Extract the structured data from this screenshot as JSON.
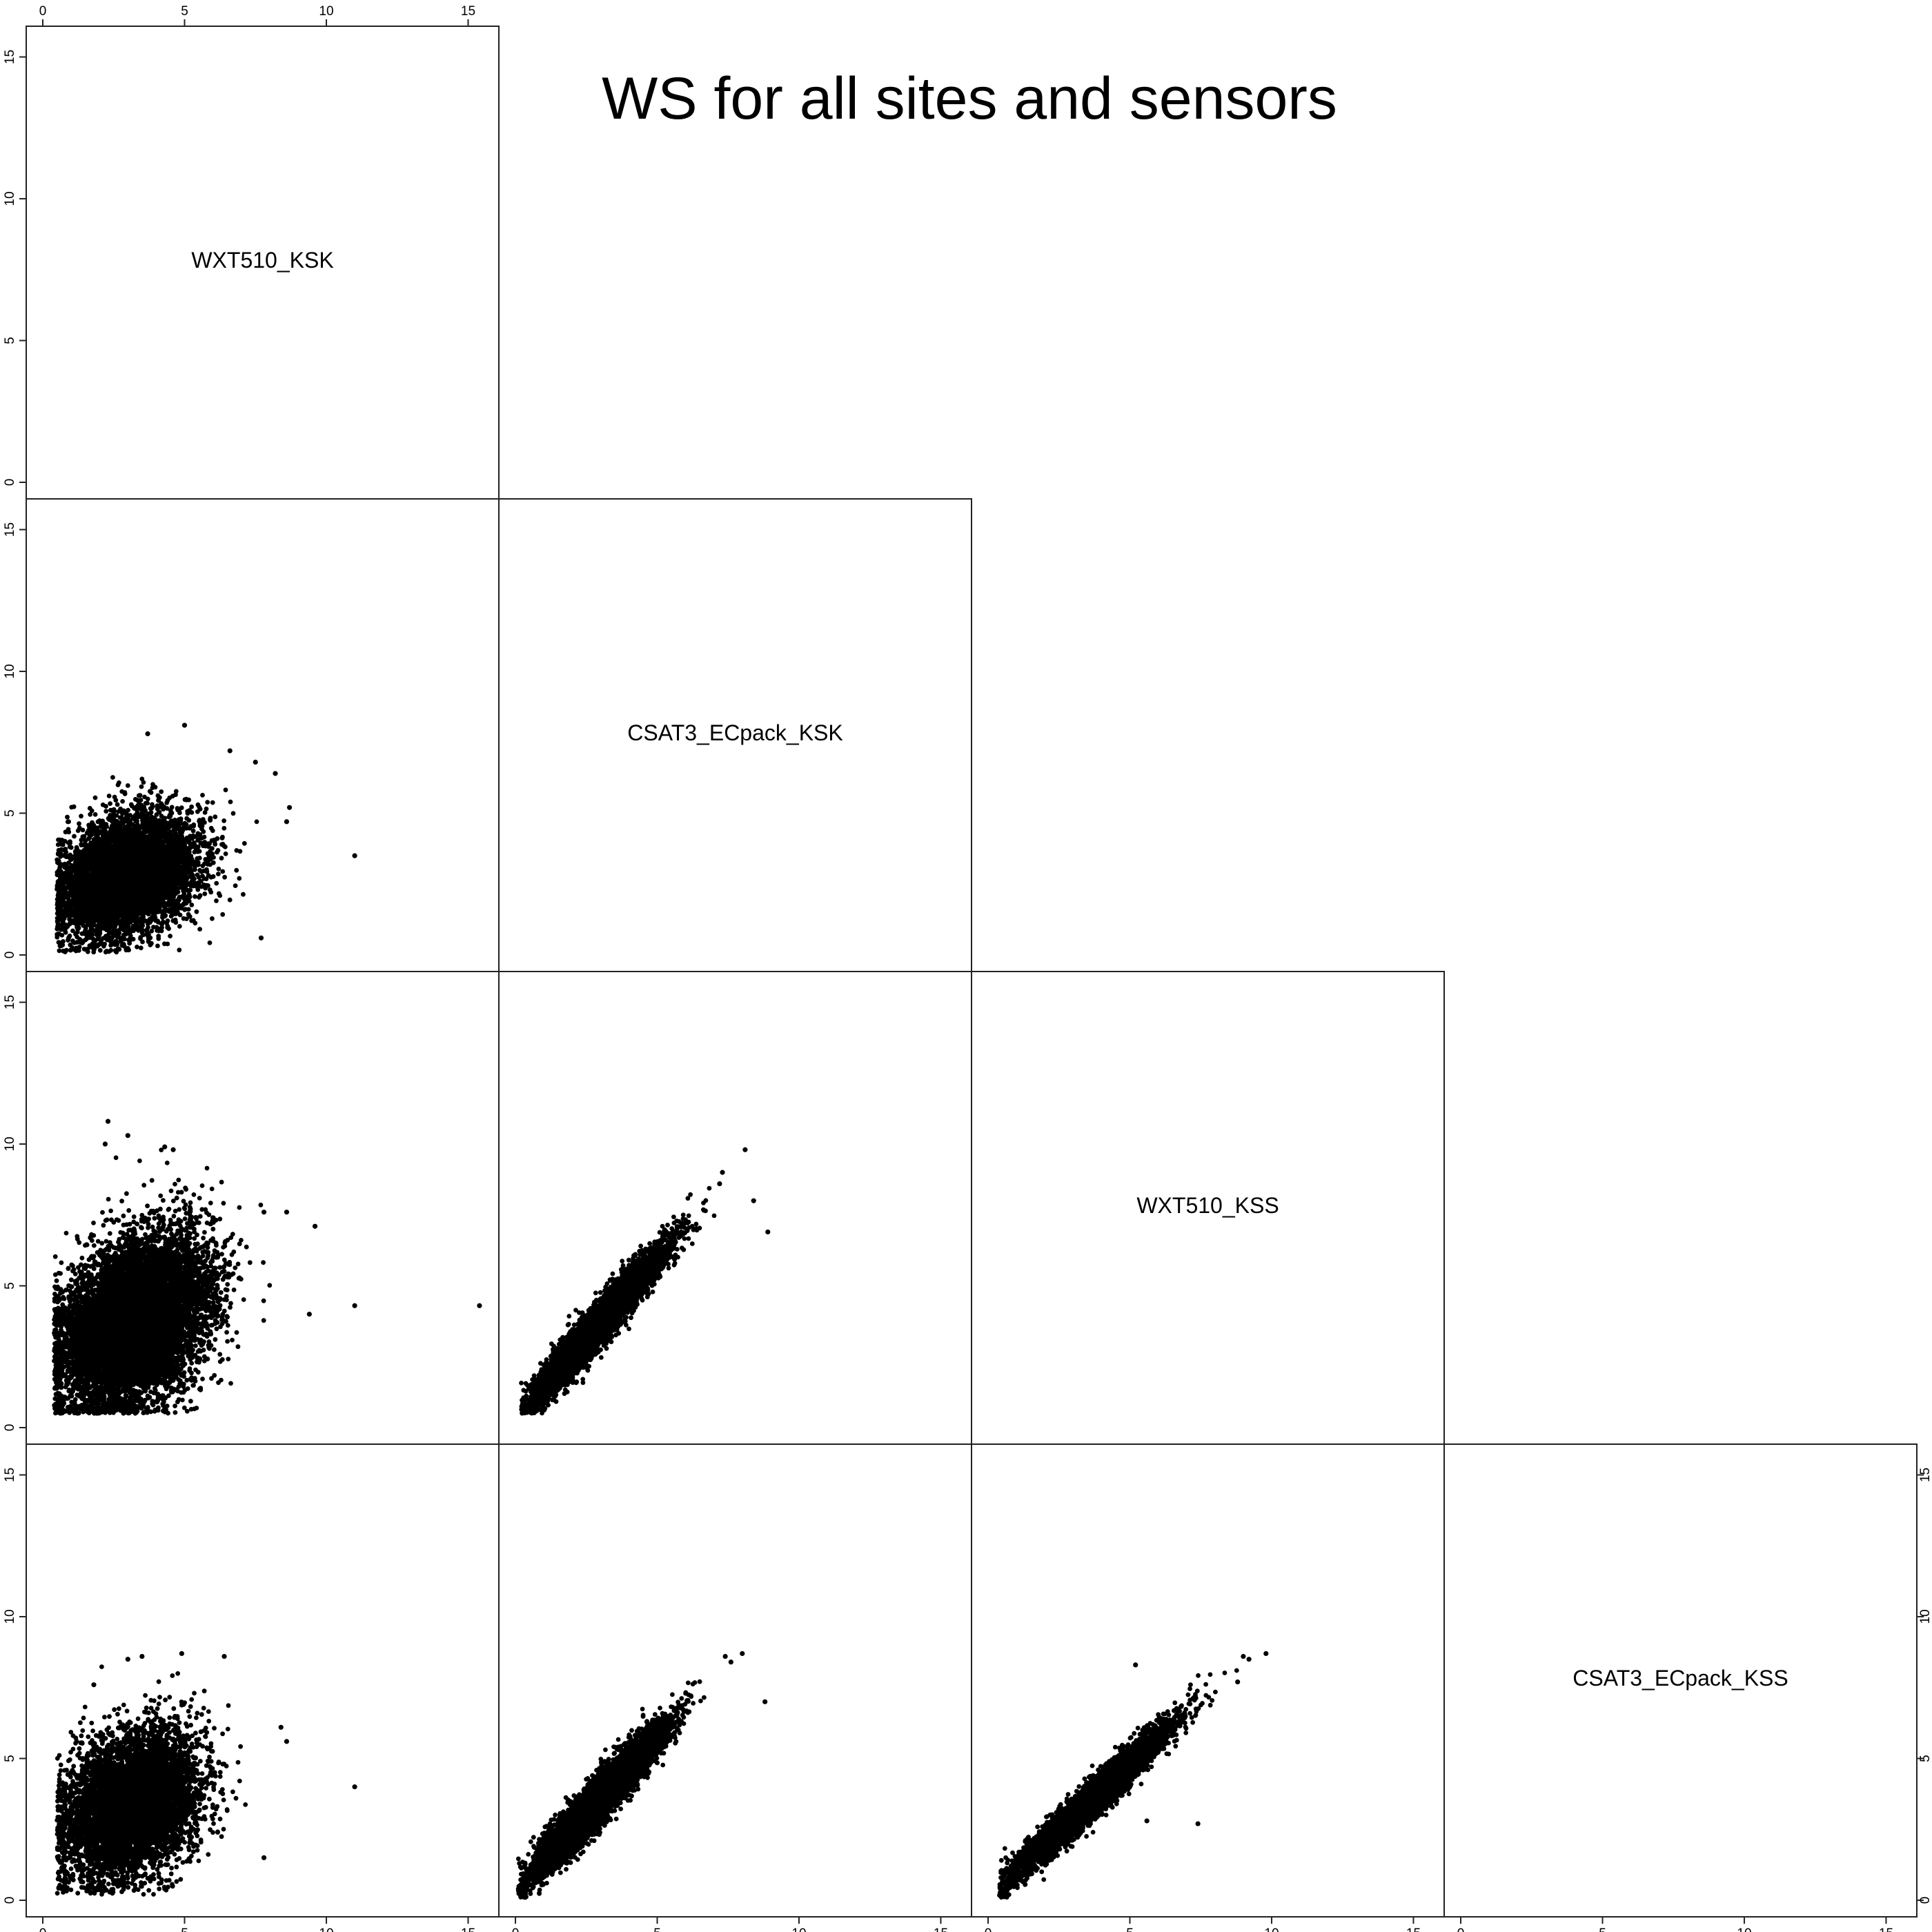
{
  "title": "WS for all sites and sensors",
  "chart_data": {
    "type": "scatter",
    "matrix_type": "pairs-lower-triangle",
    "title": "WS for all sites and sensors",
    "variables": [
      "WXT510_KSK",
      "CSAT3_ECpack_KSK",
      "WXT510_KSS",
      "CSAT3_ECpack_KSS"
    ],
    "xlim": [
      0,
      15.5
    ],
    "ylim": [
      0,
      15.5
    ],
    "ticks": [
      0,
      5,
      10,
      15
    ],
    "tick_labels": [
      "0",
      "5",
      "10",
      "15"
    ],
    "grid": false,
    "point_color": "#000000",
    "panels": [
      {
        "x_var": "WXT510_KSK",
        "y_var": "CSAT3_ECpack_KSK",
        "cloud": {
          "x_mean": 3.0,
          "y_mean": 2.8,
          "x_sd": 1.2,
          "y_sd": 1.05,
          "r": 0.3,
          "x_min": 0.5,
          "y_min": 0.1,
          "n": 6000
        },
        "outliers": [
          [
            11.0,
            3.5
          ],
          [
            5.0,
            8.1
          ],
          [
            3.7,
            7.8
          ],
          [
            8.7,
            5.2
          ],
          [
            8.6,
            4.7
          ],
          [
            7.7,
            0.6
          ],
          [
            8.2,
            6.4
          ],
          [
            6.6,
            7.2
          ],
          [
            7.5,
            6.8
          ]
        ]
      },
      {
        "x_var": "WXT510_KSK",
        "y_var": "WXT510_KSS",
        "cloud": {
          "x_mean": 3.2,
          "y_mean": 3.7,
          "x_sd": 1.3,
          "y_sd": 1.5,
          "r": 0.35,
          "x_min": 0.4,
          "y_min": 0.5,
          "n": 9000
        },
        "outliers": [
          [
            15.4,
            4.3
          ],
          [
            11.0,
            4.3
          ],
          [
            9.4,
            4.0
          ],
          [
            9.6,
            7.1
          ],
          [
            2.3,
            10.8
          ],
          [
            3.0,
            10.3
          ],
          [
            4.3,
            9.9
          ],
          [
            2.2,
            10.0
          ],
          [
            4.6,
            9.8
          ],
          [
            8.6,
            7.6
          ],
          [
            7.8,
            7.6
          ]
        ]
      },
      {
        "x_var": "WXT510_KSK",
        "y_var": "CSAT3_ECpack_KSS",
        "cloud": {
          "x_mean": 3.1,
          "y_mean": 3.4,
          "x_sd": 1.2,
          "y_sd": 1.3,
          "r": 0.3,
          "x_min": 0.5,
          "y_min": 0.2,
          "n": 6000
        },
        "outliers": [
          [
            11.0,
            4.0
          ],
          [
            4.9,
            8.7
          ],
          [
            3.5,
            8.6
          ],
          [
            3.0,
            8.5
          ],
          [
            8.6,
            5.6
          ],
          [
            8.4,
            6.1
          ],
          [
            7.8,
            1.5
          ],
          [
            6.4,
            8.6
          ],
          [
            1.8,
            7.6
          ]
        ]
      },
      {
        "x_var": "CSAT3_ECpack_KSK",
        "y_var": "WXT510_KSS",
        "cloud": {
          "x_mean": 2.9,
          "y_mean": 3.6,
          "x_sd": 1.15,
          "y_sd": 1.35,
          "r": 0.96,
          "x_min": 0.2,
          "y_min": 0.5,
          "n": 6000
        },
        "outliers": [
          [
            8.1,
            9.8
          ],
          [
            8.4,
            8.0
          ],
          [
            8.9,
            6.9
          ],
          [
            7.3,
            9.0
          ],
          [
            7.2,
            8.6
          ]
        ]
      },
      {
        "x_var": "CSAT3_ECpack_KSK",
        "y_var": "CSAT3_ECpack_KSS",
        "cloud": {
          "x_mean": 2.9,
          "y_mean": 3.5,
          "x_sd": 1.15,
          "y_sd": 1.3,
          "r": 0.95,
          "x_min": 0.1,
          "y_min": 0.1,
          "n": 6000
        },
        "outliers": [
          [
            8.0,
            8.7
          ],
          [
            8.8,
            7.0
          ],
          [
            7.4,
            8.6
          ],
          [
            7.6,
            8.4
          ]
        ]
      },
      {
        "x_var": "WXT510_KSS",
        "y_var": "CSAT3_ECpack_KSS",
        "cloud": {
          "x_mean": 3.6,
          "y_mean": 3.5,
          "x_sd": 1.35,
          "y_sd": 1.3,
          "r": 0.97,
          "x_min": 0.4,
          "y_min": 0.1,
          "n": 6000
        },
        "outliers": [
          [
            9.8,
            8.7
          ],
          [
            9.2,
            8.5
          ],
          [
            9.0,
            8.6
          ],
          [
            8.8,
            7.7
          ],
          [
            7.4,
            2.7
          ],
          [
            5.6,
            2.8
          ],
          [
            5.2,
            8.3
          ]
        ]
      }
    ]
  }
}
